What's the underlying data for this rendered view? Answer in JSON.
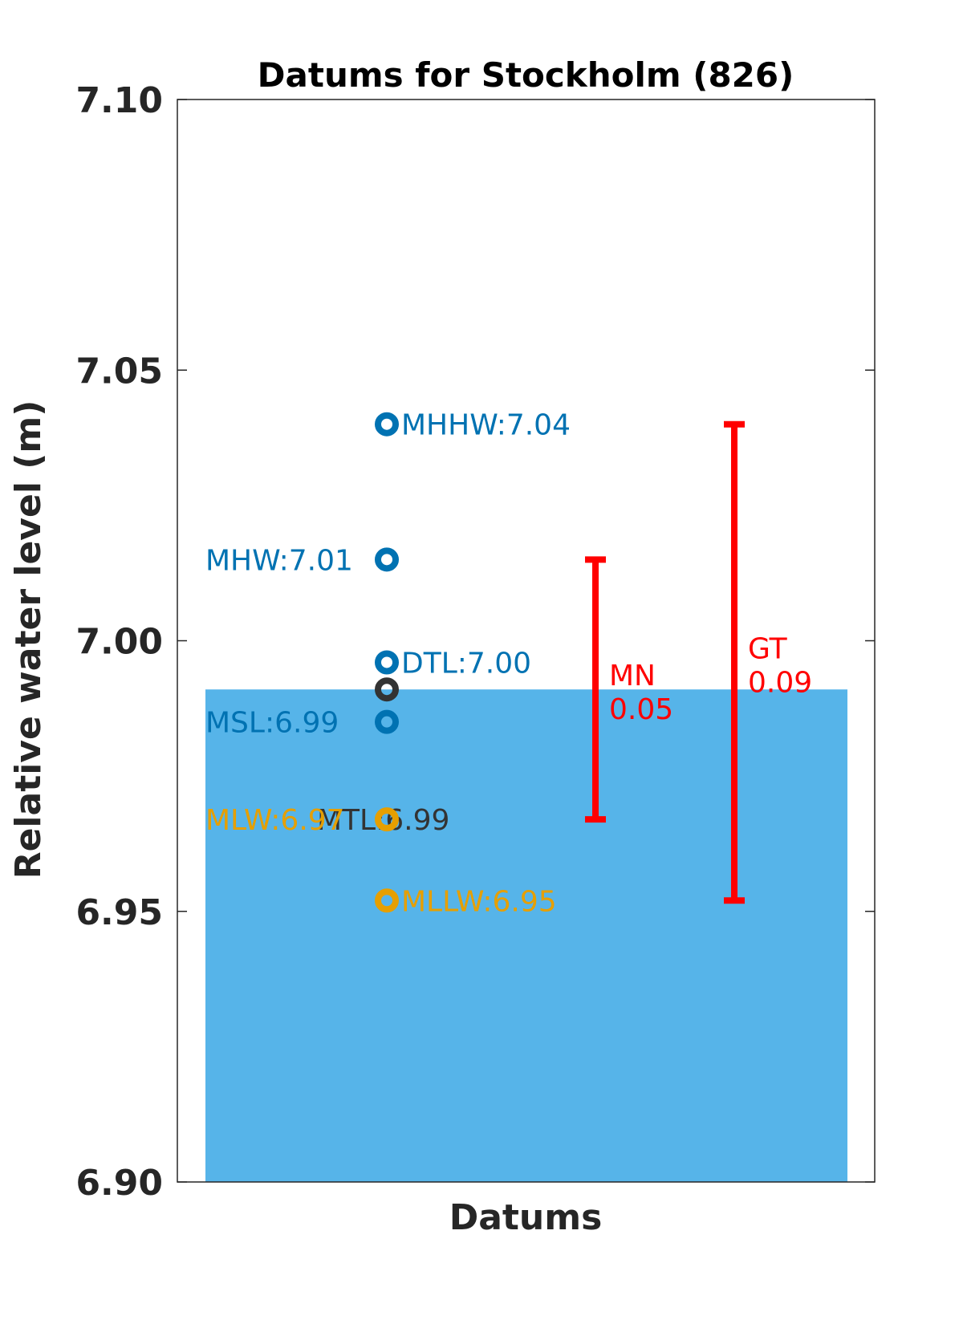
{
  "chart_data": {
    "type": "scatter",
    "title": "Datums for Stockholm (826)",
    "xlabel": "Datums",
    "ylabel": "Relative water level (m)",
    "ylim": [
      6.9,
      7.1
    ],
    "yticks": [
      "6.90",
      "6.95",
      "7.00",
      "7.05",
      "7.10"
    ],
    "grid": false,
    "water_level": {
      "value": 6.991,
      "color": "#56B4E9"
    },
    "datums": [
      {
        "name": "MHHW",
        "value": 7.04,
        "label": "MHHW:7.04",
        "color": "#0072B2",
        "label_side": "right"
      },
      {
        "name": "MHW",
        "value": 7.015,
        "label": "MHW:7.01",
        "color": "#0072B2",
        "label_side": "left"
      },
      {
        "name": "DTL",
        "value": 6.996,
        "label": "DTL:7.00",
        "color": "#0072B2",
        "label_side": "right"
      },
      {
        "name": "MTL",
        "value": 6.991,
        "label": "MTL:6.99",
        "color": "#333333",
        "label_side": "below"
      },
      {
        "name": "MSL",
        "value": 6.985,
        "label": "MSL:6.99",
        "color": "#0072B2",
        "label_side": "left"
      },
      {
        "name": "MLW",
        "value": 6.967,
        "label": "MLW:6.97",
        "color": "#E69F00",
        "label_side": "left"
      },
      {
        "name": "MLLW",
        "value": 6.952,
        "label": "MLLW:6.95",
        "color": "#E69F00",
        "label_side": "right"
      }
    ],
    "ranges": [
      {
        "name": "MN",
        "low": 6.967,
        "high": 7.015,
        "label_name": "MN",
        "label_value": "0.05",
        "color": "#FF0000"
      },
      {
        "name": "GT",
        "low": 6.952,
        "high": 7.04,
        "label_name": "GT",
        "label_value": "0.09",
        "color": "#FF0000"
      }
    ]
  }
}
